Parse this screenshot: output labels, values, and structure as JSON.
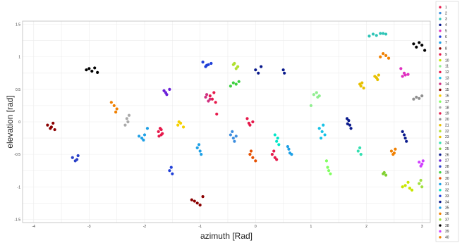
{
  "chart_data": {
    "type": "scatter",
    "title": "",
    "xlabel": "azimuth [Rad]",
    "ylabel": "elevation [rad]",
    "xlim": [
      -4.2,
      3.15
    ],
    "ylim": [
      -1.55,
      1.55
    ],
    "xticks": [
      -4,
      -3,
      -2,
      -1,
      0,
      1,
      2,
      3
    ],
    "yticks": [
      1.5,
      1,
      0.5,
      0,
      -0.5,
      -1,
      -1.5
    ],
    "xtick_labels": [
      "-4",
      "-3",
      "-2",
      "-1",
      "0",
      "1",
      "2",
      "3"
    ],
    "ytick_labels": [
      "1.5",
      "1",
      "0.5",
      "0",
      "-0.5",
      "-1",
      "-1.5"
    ],
    "grid": true,
    "legend_position": "right",
    "series": [
      {
        "name": "1",
        "color": "#e6194b",
        "x": [
          -1.75,
          -1.7,
          -1.72,
          -1.68,
          -1.74,
          -1.7
        ],
        "y": [
          -0.15,
          -0.2,
          -0.1,
          -0.18,
          -0.22,
          -0.12
        ]
      },
      {
        "name": "2",
        "color": "#3c8dde",
        "x": [
          -0.45,
          -0.4,
          -0.42,
          -0.35,
          -0.38
        ],
        "y": [
          -0.2,
          -0.25,
          -0.15,
          -0.22,
          -0.3
        ]
      },
      {
        "name": "3",
        "color": "#2ec4b6",
        "x": [
          2.05,
          2.12,
          2.18,
          2.25,
          2.3,
          2.35
        ],
        "y": [
          1.32,
          1.35,
          1.33,
          1.36,
          1.36,
          1.35
        ]
      },
      {
        "name": "4",
        "color": "#0a1a8c",
        "x": [
          1.65,
          1.7,
          1.72,
          1.68,
          1.66
        ],
        "y": [
          0.05,
          -0.05,
          -0.1,
          0.02,
          -0.03
        ]
      },
      {
        "name": "5",
        "color": "#e030c0",
        "x": [
          2.62,
          2.65,
          2.7,
          2.75,
          2.68
        ],
        "y": [
          0.82,
          0.7,
          0.72,
          0.73,
          0.75
        ]
      },
      {
        "name": "6",
        "color": "#1f3fd8",
        "x": [
          -0.95,
          -0.9,
          -0.85,
          -0.8,
          -0.88
        ],
        "y": [
          0.92,
          0.85,
          0.88,
          0.9,
          0.87
        ]
      },
      {
        "name": "7",
        "color": "#1ea0e6",
        "x": [
          -2.1,
          -2.05,
          -2.0,
          -1.95,
          -2.02
        ],
        "y": [
          -0.22,
          -0.25,
          -0.2,
          -0.1,
          -0.28
        ]
      },
      {
        "name": "8",
        "color": "#8b0000",
        "x": [
          -3.75,
          -3.7,
          -3.65,
          -3.62,
          -3.68
        ],
        "y": [
          -0.05,
          -0.1,
          -0.02,
          -0.12,
          -0.08
        ]
      },
      {
        "name": "9",
        "color": "#e6194b",
        "x": [
          0.3,
          0.35,
          0.38,
          0.33
        ],
        "y": [
          -0.5,
          -0.55,
          -0.58,
          -0.45
        ]
      },
      {
        "name": "10",
        "color": "#c8e600",
        "x": [
          2.65,
          2.7,
          2.78,
          2.82,
          2.75
        ],
        "y": [
          -1.0,
          -0.98,
          -1.02,
          -1.05,
          -0.93
        ]
      },
      {
        "name": "11",
        "color": "#90ee90",
        "x": [
          1.05,
          1.1,
          1.15,
          1.12,
          1.0
        ],
        "y": [
          0.42,
          0.45,
          0.4,
          0.38,
          0.25
        ]
      },
      {
        "name": "12",
        "color": "#e6194b",
        "x": [
          -0.82,
          -0.78,
          -0.75,
          -0.72,
          -0.7
        ],
        "y": [
          0.4,
          0.35,
          0.45,
          0.3,
          0.12
        ]
      },
      {
        "name": "13",
        "color": "#16c2e6",
        "x": [
          1.15,
          1.2,
          1.25,
          1.18,
          1.22
        ],
        "y": [
          -0.1,
          -0.15,
          -0.2,
          -0.25,
          -0.05
        ]
      },
      {
        "name": "14",
        "color": "#d03080",
        "x": [
          -0.9,
          -0.85,
          -0.88,
          -0.82
        ],
        "y": [
          0.38,
          0.32,
          0.42,
          0.35
        ]
      },
      {
        "name": "15",
        "color": "#8b0000",
        "x": [
          -1.15,
          -1.05,
          -1.0,
          -0.95,
          -1.1
        ],
        "y": [
          -1.2,
          -1.25,
          -1.28,
          -1.15,
          -1.22
        ]
      },
      {
        "name": "16",
        "color": "#f5d000",
        "x": [
          -1.4,
          -1.35,
          -1.3,
          -1.38
        ],
        "y": [
          -0.05,
          -0.02,
          -0.08,
          0.0
        ]
      },
      {
        "name": "17",
        "color": "#80ff60",
        "x": [
          1.3,
          1.32,
          1.35,
          1.28
        ],
        "y": [
          -0.7,
          -0.75,
          -0.8,
          -0.6
        ]
      },
      {
        "name": "18",
        "color": "#aaaaaa",
        "x": [
          -2.35,
          -2.3,
          -2.28,
          -2.32
        ],
        "y": [
          -0.05,
          0.0,
          0.1,
          0.05
        ]
      },
      {
        "name": "19",
        "color": "#e6194b",
        "x": [
          -0.15,
          -0.1,
          -0.05,
          -0.12
        ],
        "y": [
          0.05,
          -0.05,
          0.0,
          -0.02
        ]
      },
      {
        "name": "20",
        "color": "#909090",
        "x": [
          2.85,
          2.9,
          2.95,
          3.0
        ],
        "y": [
          0.35,
          0.38,
          0.36,
          0.4
        ]
      },
      {
        "name": "21",
        "color": "#e8c000",
        "x": [
          1.9,
          1.92,
          1.95,
          1.88
        ],
        "y": [
          0.55,
          0.6,
          0.52,
          0.58
        ]
      },
      {
        "name": "22",
        "color": "#b0e030",
        "x": [
          -0.4,
          -0.35,
          -0.38,
          -0.32
        ],
        "y": [
          0.88,
          0.82,
          0.9,
          0.85
        ]
      },
      {
        "name": "23",
        "color": "#e6c000",
        "x": [
          2.15,
          2.2,
          2.22,
          2.18
        ],
        "y": [
          0.7,
          0.65,
          0.72,
          0.68
        ]
      },
      {
        "name": "24",
        "color": "#32e0b0",
        "x": [
          1.85,
          1.9,
          1.88
        ],
        "y": [
          -0.45,
          -0.5,
          -0.4
        ]
      },
      {
        "name": "25",
        "color": "#80d030",
        "x": [
          2.3,
          2.35,
          2.32
        ],
        "y": [
          -0.8,
          -0.82,
          -0.78
        ]
      },
      {
        "name": "26",
        "color": "#0a1a8c",
        "x": [
          2.65,
          2.7,
          2.72,
          2.68
        ],
        "y": [
          -0.15,
          -0.25,
          -0.3,
          -0.2
        ]
      },
      {
        "name": "27",
        "color": "#6a1fd8",
        "x": [
          -1.65,
          -1.6,
          -1.55,
          -1.62
        ],
        "y": [
          0.48,
          0.42,
          0.5,
          0.45
        ]
      },
      {
        "name": "28",
        "color": "#2a40c8",
        "x": [
          -3.3,
          -3.25,
          -3.2,
          -3.22
        ],
        "y": [
          -0.55,
          -0.6,
          -0.52,
          -0.58
        ]
      },
      {
        "name": "29",
        "color": "#3ed040",
        "x": [
          -0.45,
          -0.4,
          -0.35,
          -0.3
        ],
        "y": [
          0.55,
          0.6,
          0.58,
          0.62
        ]
      },
      {
        "name": "30",
        "color": "#e65000",
        "x": [
          -0.1,
          -0.05,
          0.0,
          -0.08
        ],
        "y": [
          -0.5,
          -0.55,
          -0.6,
          -0.45
        ]
      },
      {
        "name": "31",
        "color": "#1ea0e6",
        "x": [
          0.6,
          0.62,
          0.65,
          0.58
        ],
        "y": [
          -0.42,
          -0.48,
          -0.5,
          -0.38
        ]
      },
      {
        "name": "32",
        "color": "#00e6c8",
        "x": [
          0.35,
          0.38,
          0.4,
          0.42
        ],
        "y": [
          -0.2,
          -0.3,
          -0.25,
          -0.35
        ]
      },
      {
        "name": "33",
        "color": "#1f3fd8",
        "x": [
          -1.55,
          -1.5,
          -1.52
        ],
        "y": [
          -0.75,
          -0.8,
          -0.7
        ]
      },
      {
        "name": "34",
        "color": "#0a1a8c",
        "x": [
          0.0,
          0.05,
          0.1,
          0.5,
          0.52
        ],
        "y": [
          0.8,
          0.75,
          0.85,
          0.8,
          0.75
        ]
      },
      {
        "name": "35",
        "color": "#1ea0e6",
        "x": [
          -1.05,
          -1.0,
          -0.98,
          -1.02
        ],
        "y": [
          -0.4,
          -0.45,
          -0.5,
          -0.35
        ]
      },
      {
        "name": "36",
        "color": "#f08000",
        "x": [
          2.25,
          2.3,
          2.35,
          2.4
        ],
        "y": [
          1.0,
          1.05,
          1.02,
          0.98
        ]
      },
      {
        "name": "37",
        "color": "#a0e040",
        "x": [
          2.95,
          3.0,
          2.98
        ],
        "y": [
          -0.95,
          -1.0,
          -0.9
        ]
      },
      {
        "name": "38",
        "color": "#000000",
        "x": [
          -3.05,
          -3.0,
          -2.95,
          -2.9,
          -2.85,
          2.85,
          2.9,
          2.95,
          3.0,
          3.05
        ],
        "y": [
          0.8,
          0.82,
          0.78,
          0.83,
          0.76,
          1.2,
          1.15,
          1.22,
          1.18,
          1.1
        ]
      },
      {
        "name": "39",
        "color": "#d040ff",
        "x": [
          2.95,
          3.0,
          3.02,
          2.98
        ],
        "y": [
          -0.62,
          -0.65,
          -0.6,
          -0.68
        ]
      },
      {
        "name": "40",
        "color": "#f08000",
        "x": [
          -2.6,
          -2.55,
          -2.5,
          -2.52,
          2.45,
          2.5,
          2.52,
          2.48
        ],
        "y": [
          0.3,
          0.25,
          0.2,
          0.15,
          -0.45,
          -0.48,
          -0.42,
          -0.5
        ]
      }
    ]
  }
}
